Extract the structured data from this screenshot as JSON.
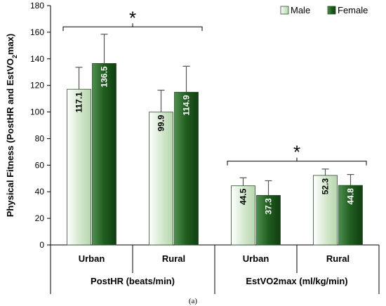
{
  "chart_data": {
    "type": "bar",
    "ylabel_main": "Physical Fitness",
    "ylabel_paren_prefix": "(PostHR and EstVO",
    "ylabel_sub": "2",
    "ylabel_paren_suffix": "max)",
    "ylim": [
      0,
      180
    ],
    "yticks": [
      0,
      20,
      40,
      60,
      80,
      100,
      120,
      140,
      160,
      180
    ],
    "legend_position": "top-right",
    "groups": [
      {
        "label": "PostHR (beats/min)",
        "subcategories": [
          "Urban",
          "Rural"
        ]
      },
      {
        "label": "EstVO2max (ml/kg/min)",
        "subcategories": [
          "Urban",
          "Rural"
        ]
      }
    ],
    "categories": [
      "Urban",
      "Rural",
      "Urban",
      "Rural"
    ],
    "series": [
      {
        "name": "Male",
        "values": [
          117.1,
          99.9,
          44.5,
          52.3
        ],
        "error": [
          16.5,
          16.5,
          6.0,
          4.8
        ],
        "color": "#cfe5c8",
        "label_color": "#000000"
      },
      {
        "name": "Female",
        "values": [
          136.5,
          114.9,
          37.3,
          44.8
        ],
        "error": [
          22.0,
          19.5,
          11.0,
          8.2
        ],
        "color": "#1f5d1f",
        "label_color": "#ffffff"
      }
    ],
    "annotations": [
      {
        "text": "*",
        "group": 0,
        "bracket_y": 164
      },
      {
        "text": "*",
        "group": 1,
        "bracket_y": 63
      }
    ],
    "caption": "(a)"
  }
}
